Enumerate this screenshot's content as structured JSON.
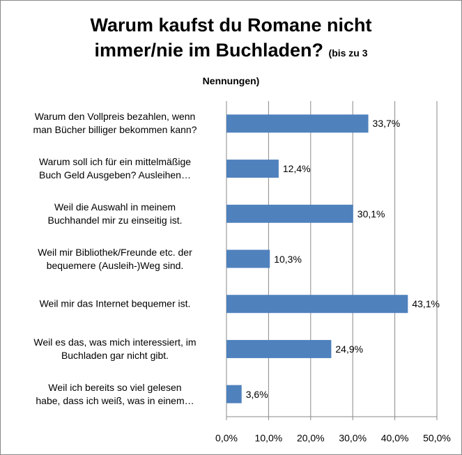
{
  "chart_data": {
    "type": "bar",
    "orientation": "horizontal",
    "title": "Warum kaufst du Romane nicht immer/nie im Buchladen?",
    "subtitle": "(bis zu 3 Nennungen)",
    "categories": [
      "Warum den Vollpreis bezahlen, wenn\nman Bücher billiger bekommen kann?",
      "Warum soll ich für ein mittelmäßige\nBuch Geld Ausgeben? Ausleihen…",
      "Weil die Auswahl in meinem\nBuchhandel mir zu einseitig ist.",
      "Weil mir Bibliothek/Freunde etc. der\nbequemere (Ausleih-)Weg sind.",
      "Weil mir das Internet bequemer ist.",
      "Weil es das, was mich interessiert, im\nBuchladen gar nicht gibt.",
      "Weil ich bereits so viel gelesen\nhabe, dass ich weiß, was in einem…"
    ],
    "values": [
      33.7,
      12.4,
      30.1,
      10.3,
      43.1,
      24.9,
      3.6
    ],
    "value_labels": [
      "33,7%",
      "12,4%",
      "30,1%",
      "10,3%",
      "43,1%",
      "24,9%",
      "3,6%"
    ],
    "color": "#4f81bd",
    "xlim": [
      0,
      50
    ],
    "xticks": [
      {
        "value": 0,
        "label": "0,0%"
      },
      {
        "value": 10,
        "label": "10,0%"
      },
      {
        "value": 20,
        "label": "20,0%"
      },
      {
        "value": 30,
        "label": "30,0%"
      },
      {
        "value": 40,
        "label": "40,0%"
      },
      {
        "value": 50,
        "label": "50,0%"
      }
    ],
    "grid": true
  }
}
